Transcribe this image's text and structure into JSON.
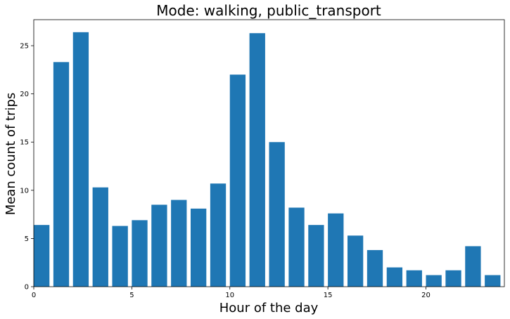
{
  "chart_data": {
    "type": "bar",
    "title": "Mode: walking, public_transport",
    "xlabel": "Hour of the day",
    "ylabel": "Mean count of trips",
    "x": [
      0.4,
      1.4,
      2.4,
      3.4,
      4.4,
      5.4,
      6.4,
      7.4,
      8.4,
      9.4,
      10.4,
      11.4,
      12.4,
      13.4,
      14.4,
      15.4,
      16.4,
      17.4,
      18.4,
      19.4,
      20.4,
      21.4,
      22.4,
      23.4
    ],
    "values": [
      6.4,
      23.3,
      26.4,
      10.3,
      6.3,
      6.9,
      8.5,
      9.0,
      8.1,
      10.7,
      22.0,
      26.3,
      15.0,
      8.2,
      6.4,
      7.6,
      5.3,
      3.8,
      2.0,
      1.7,
      1.2,
      1.7,
      4.2,
      1.2
    ],
    "xlim": [
      0,
      24
    ],
    "ylim": [
      0,
      27.7
    ],
    "xticks": [
      0,
      5,
      10,
      15,
      20
    ],
    "yticks": [
      0,
      5,
      10,
      15,
      20,
      25
    ],
    "bar_color": "#1f77b4",
    "grid": false,
    "legend": "none"
  }
}
